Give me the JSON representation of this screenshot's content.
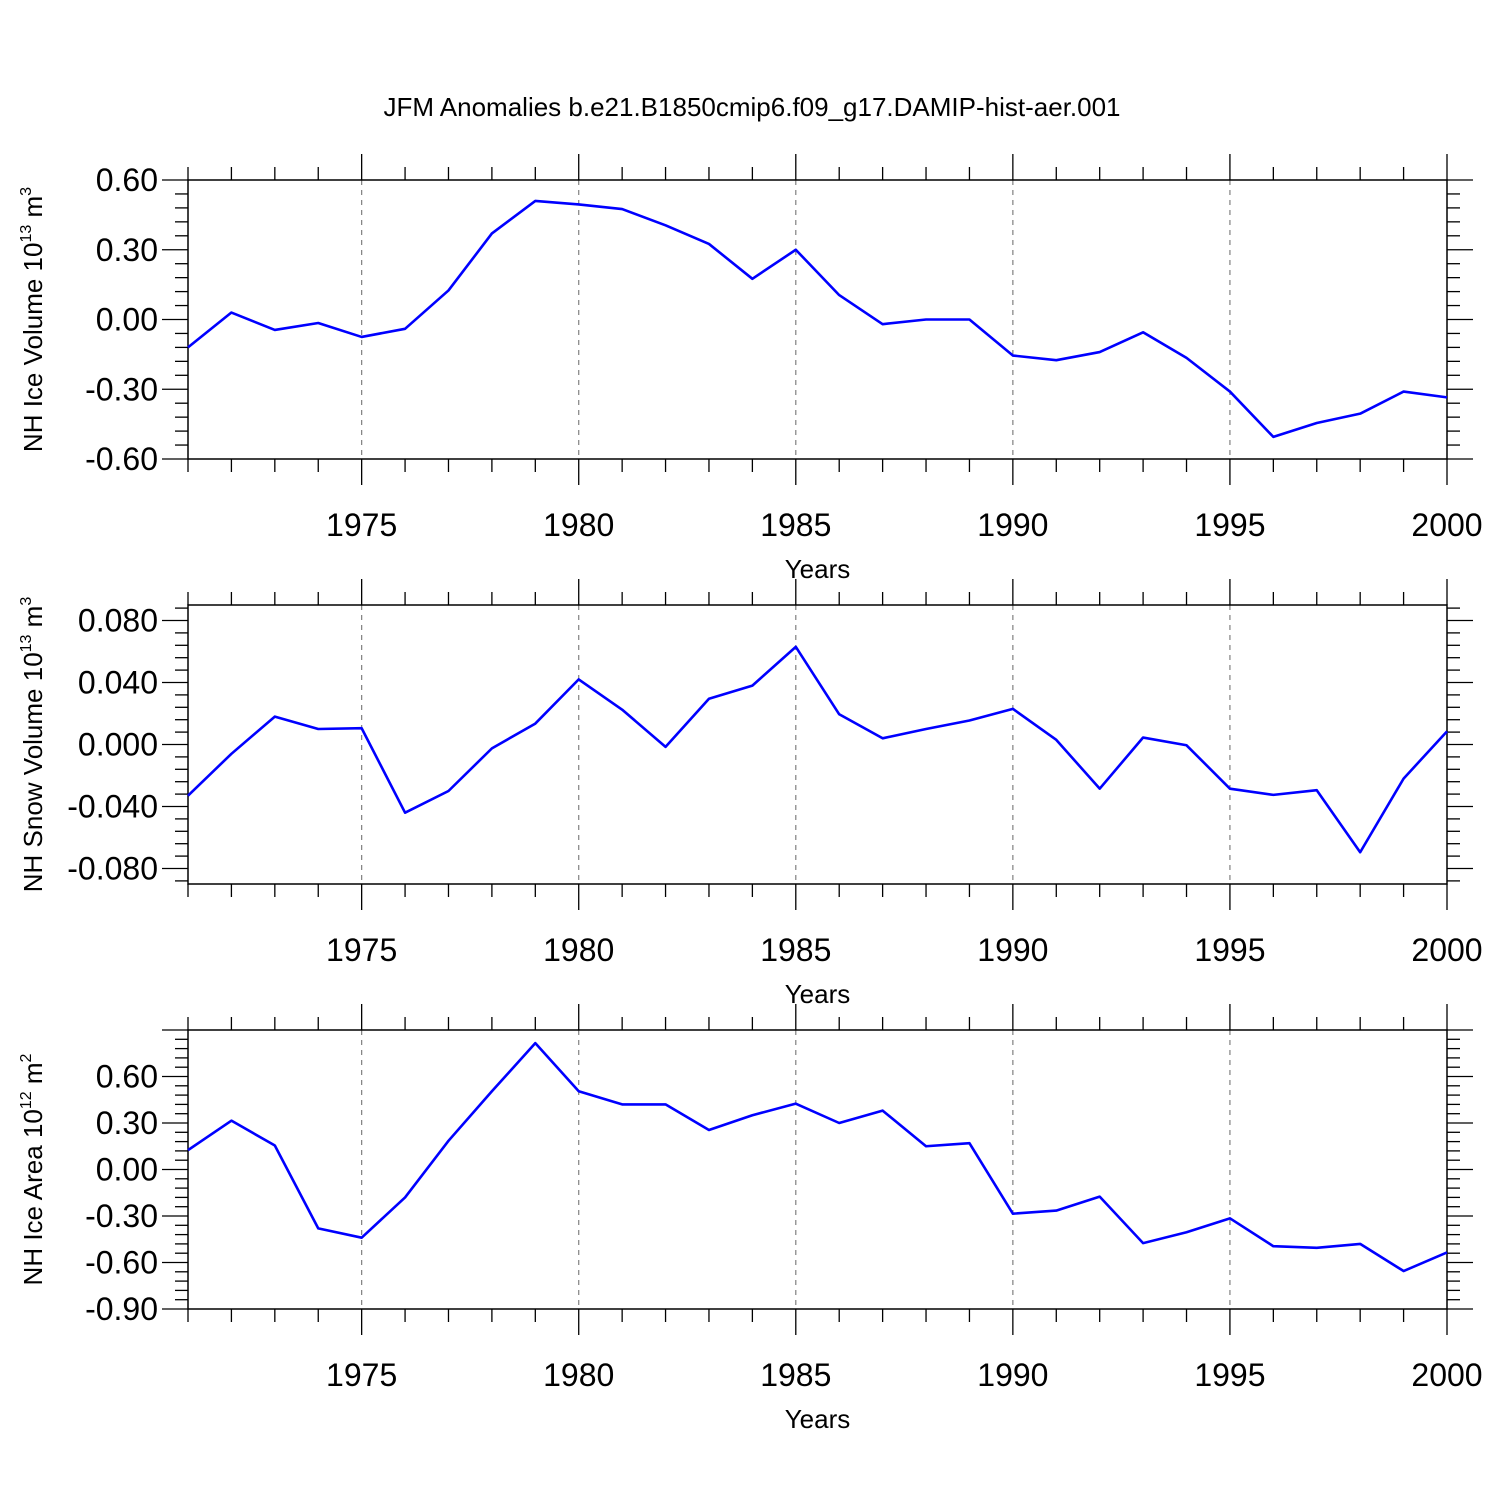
{
  "title": "JFM Anomalies b.e21.B1850cmip6.f09_g17.DAMIP-hist-aer.001",
  "colors": {
    "line": "#0000ff",
    "axis": "#000000",
    "grid": "#808080"
  },
  "chart_data": [
    {
      "type": "line",
      "xlabel": "Years",
      "ylabel": {
        "text": "NH Ice Volume 10",
        "exp": "13",
        "unit": " m",
        "unit_exp": "3"
      },
      "xlim": [
        1971,
        2000
      ],
      "ylim": [
        -0.6,
        0.6
      ],
      "yticks": [
        -0.6,
        -0.3,
        0.0,
        0.3,
        0.6
      ],
      "ytick_labels": [
        "-0.60",
        "-0.30",
        "0.00",
        "0.30",
        "0.60"
      ],
      "xticks": [
        1975,
        1980,
        1985,
        1990,
        1995,
        2000
      ],
      "xtick_labels": [
        "1975",
        "1980",
        "1985",
        "1990",
        "1995",
        "2000"
      ],
      "grid": "x-dashed",
      "series": [
        {
          "x": [
            1971,
            1972,
            1973,
            1974,
            1975,
            1976,
            1977,
            1978,
            1979,
            1980,
            1981,
            1982,
            1983,
            1984,
            1985,
            1986,
            1987,
            1988,
            1989,
            1990,
            1991,
            1992,
            1993,
            1994,
            1995,
            1996,
            1997,
            1998,
            1999,
            2000
          ],
          "y": [
            -0.12,
            0.03,
            -0.045,
            -0.015,
            -0.075,
            -0.04,
            0.125,
            0.37,
            0.51,
            0.495,
            0.475,
            0.405,
            0.325,
            0.175,
            0.3,
            0.105,
            -0.02,
            0.0,
            0.0,
            -0.155,
            -0.175,
            -0.14,
            -0.055,
            -0.165,
            -0.31,
            -0.505,
            -0.445,
            -0.405,
            -0.31,
            -0.335
          ]
        }
      ]
    },
    {
      "type": "line",
      "xlabel": "Years",
      "ylabel": {
        "text": "NH Snow Volume 10",
        "exp": "13",
        "unit": " m",
        "unit_exp": "3"
      },
      "xlim": [
        1971,
        2000
      ],
      "ylim": [
        -0.09,
        0.09
      ],
      "yticks": [
        -0.08,
        -0.04,
        0.0,
        0.04,
        0.08
      ],
      "ytick_labels": [
        "-0.080",
        "-0.040",
        "0.000",
        "0.040",
        "0.080"
      ],
      "xticks": [
        1975,
        1980,
        1985,
        1990,
        1995,
        2000
      ],
      "xtick_labels": [
        "1975",
        "1980",
        "1985",
        "1990",
        "1995",
        "2000"
      ],
      "grid": "x-dashed",
      "series": [
        {
          "x": [
            1971,
            1972,
            1973,
            1974,
            1975,
            1976,
            1977,
            1978,
            1979,
            1980,
            1981,
            1982,
            1983,
            1984,
            1985,
            1986,
            1987,
            1988,
            1989,
            1990,
            1991,
            1992,
            1993,
            1994,
            1995,
            1996,
            1997,
            1998,
            1999,
            2000
          ],
          "y": [
            -0.033,
            -0.006,
            0.018,
            0.01,
            0.0105,
            -0.044,
            -0.03,
            -0.0025,
            0.0135,
            0.042,
            0.0225,
            -0.0015,
            0.0295,
            0.038,
            0.063,
            0.0195,
            0.004,
            0.01,
            0.0155,
            0.023,
            0.003,
            -0.0285,
            0.0045,
            -0.0005,
            -0.0285,
            -0.0325,
            -0.0295,
            -0.0695,
            -0.022,
            0.0085
          ]
        }
      ]
    },
    {
      "type": "line",
      "xlabel": "Years",
      "ylabel": {
        "text": "NH Ice Area 10",
        "exp": "12",
        "unit": " m",
        "unit_exp": "2"
      },
      "xlim": [
        1971,
        2000
      ],
      "ylim": [
        -0.9,
        0.9
      ],
      "yticks": [
        -0.9,
        -0.6,
        -0.3,
        0.0,
        0.3,
        0.6
      ],
      "ytick_labels": [
        "-0.90",
        "-0.60",
        "-0.30",
        "0.00",
        "0.30",
        "0.60"
      ],
      "xticks": [
        1975,
        1980,
        1985,
        1990,
        1995,
        2000
      ],
      "xtick_labels": [
        "1975",
        "1980",
        "1985",
        "1990",
        "1995",
        "2000"
      ],
      "grid": "x-dashed",
      "series": [
        {
          "x": [
            1971,
            1972,
            1973,
            1974,
            1975,
            1976,
            1977,
            1978,
            1979,
            1980,
            1981,
            1982,
            1983,
            1984,
            1985,
            1986,
            1987,
            1988,
            1989,
            1990,
            1991,
            1992,
            1993,
            1994,
            1995,
            1996,
            1997,
            1998,
            1999,
            2000
          ],
          "y": [
            0.125,
            0.315,
            0.155,
            -0.38,
            -0.44,
            -0.18,
            0.185,
            0.505,
            0.815,
            0.505,
            0.42,
            0.42,
            0.255,
            0.35,
            0.425,
            0.3,
            0.38,
            0.15,
            0.17,
            -0.285,
            -0.265,
            -0.175,
            -0.475,
            -0.405,
            -0.315,
            -0.495,
            -0.505,
            -0.48,
            -0.655,
            -0.535
          ]
        }
      ]
    }
  ]
}
